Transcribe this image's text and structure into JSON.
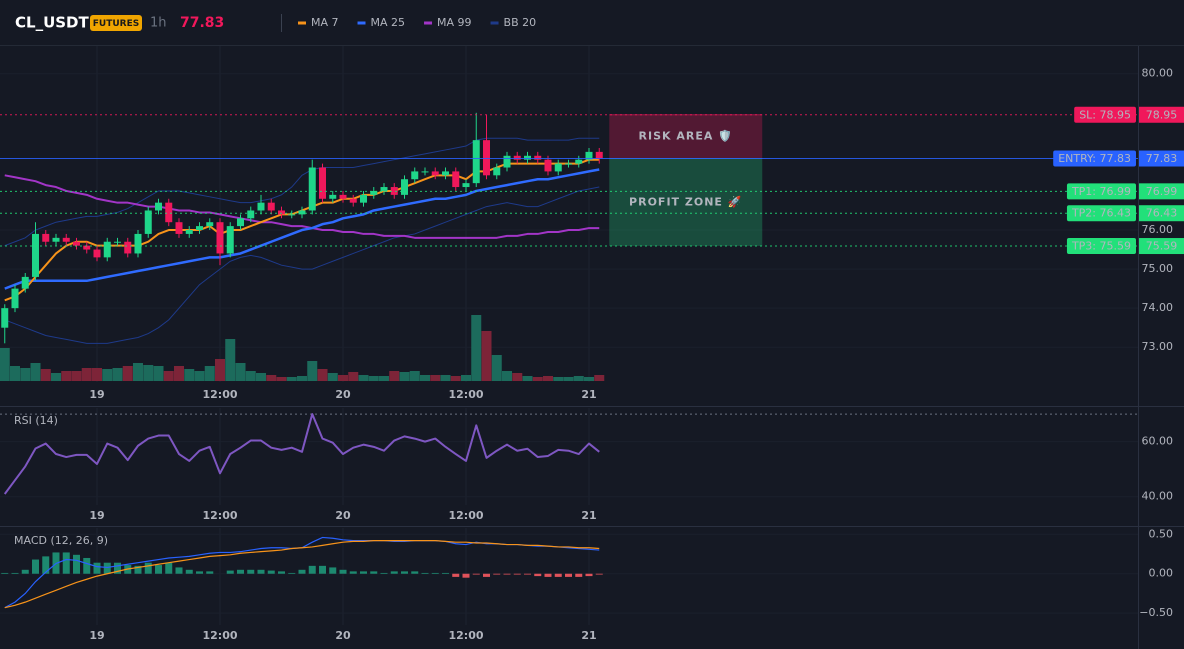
{
  "header": {
    "symbol": "CL_USDT",
    "market": "FUTURES",
    "interval": "1h",
    "price": 77.83
  },
  "chart_data": [
    {
      "type": "candlestick",
      "categories": [
        null,
        null,
        null,
        null,
        null,
        null,
        null,
        null,
        null,
        "19",
        null,
        null,
        null,
        null,
        null,
        null,
        null,
        null,
        null,
        null,
        null,
        "12:00",
        null,
        null,
        null,
        null,
        null,
        null,
        null,
        null,
        null,
        null,
        null,
        "20",
        null,
        null,
        null,
        null,
        null,
        null,
        null,
        null,
        null,
        null,
        null,
        "12:00",
        null,
        null,
        null,
        null,
        null,
        null,
        null,
        null,
        null,
        null,
        null,
        "21",
        null
      ],
      "open": [
        73.5,
        74.0,
        74.5,
        74.8,
        75.9,
        75.7,
        75.8,
        75.7,
        75.6,
        75.5,
        75.3,
        75.7,
        75.7,
        75.4,
        75.9,
        76.5,
        76.7,
        76.2,
        75.9,
        76.0,
        76.1,
        76.2,
        75.4,
        76.1,
        76.3,
        76.5,
        76.7,
        76.5,
        76.4,
        76.4,
        76.5,
        77.6,
        76.8,
        76.9,
        76.8,
        76.7,
        76.9,
        77.0,
        77.1,
        76.9,
        77.3,
        77.5,
        77.5,
        77.4,
        77.5,
        77.1,
        77.2,
        78.3,
        77.4,
        77.6,
        77.9,
        77.8,
        77.9,
        77.8,
        77.5,
        77.7,
        77.7,
        77.8,
        78.0
      ],
      "high": [
        74.1,
        74.6,
        74.9,
        76.2,
        76.0,
        75.9,
        75.9,
        75.8,
        75.7,
        75.6,
        75.8,
        75.8,
        75.8,
        76.0,
        76.6,
        76.8,
        76.8,
        76.3,
        76.1,
        76.2,
        76.3,
        76.3,
        76.2,
        76.4,
        76.6,
        76.9,
        76.8,
        76.6,
        76.5,
        76.6,
        77.8,
        77.7,
        77.0,
        77.0,
        76.9,
        77.0,
        77.1,
        77.2,
        77.2,
        77.4,
        77.6,
        77.6,
        77.6,
        77.6,
        77.6,
        77.3,
        79.0,
        78.95,
        77.7,
        78.0,
        78.0,
        78.0,
        78.0,
        77.9,
        77.8,
        77.8,
        77.9,
        78.1,
        78.1
      ],
      "low": [
        73.1,
        73.9,
        74.4,
        74.7,
        75.6,
        75.6,
        75.6,
        75.5,
        75.4,
        75.2,
        75.2,
        75.6,
        75.3,
        75.3,
        75.8,
        76.4,
        76.1,
        75.8,
        75.8,
        75.9,
        76.0,
        75.1,
        75.3,
        76.0,
        76.2,
        76.4,
        76.4,
        76.3,
        76.3,
        76.3,
        76.4,
        76.7,
        76.7,
        76.7,
        76.6,
        76.6,
        76.8,
        76.9,
        76.8,
        76.8,
        77.2,
        77.4,
        77.3,
        77.3,
        77.0,
        77.0,
        77.1,
        77.3,
        77.3,
        77.5,
        77.7,
        77.7,
        77.7,
        77.4,
        77.4,
        77.6,
        77.6,
        77.7,
        77.7
      ],
      "close": [
        74.0,
        74.5,
        74.8,
        75.9,
        75.7,
        75.8,
        75.7,
        75.6,
        75.5,
        75.3,
        75.7,
        75.7,
        75.4,
        75.9,
        76.5,
        76.7,
        76.2,
        75.9,
        76.0,
        76.1,
        76.2,
        75.4,
        76.1,
        76.3,
        76.5,
        76.7,
        76.5,
        76.4,
        76.4,
        76.5,
        77.6,
        76.8,
        76.9,
        76.8,
        76.7,
        76.9,
        77.0,
        77.1,
        76.9,
        77.3,
        77.5,
        77.5,
        77.4,
        77.5,
        77.1,
        77.2,
        78.3,
        77.4,
        77.6,
        77.9,
        77.8,
        77.9,
        77.8,
        77.5,
        77.7,
        77.7,
        77.8,
        78.0,
        77.83
      ],
      "volume": [
        33,
        15,
        13,
        18,
        12,
        8,
        10,
        10,
        13,
        13,
        12,
        13,
        15,
        18,
        16,
        15,
        10,
        15,
        12,
        10,
        15,
        22,
        42,
        18,
        10,
        8,
        6,
        4,
        4,
        5,
        20,
        12,
        8,
        6,
        9,
        6,
        5,
        5,
        10,
        9,
        10,
        6,
        6,
        6,
        5,
        6,
        66,
        50,
        26,
        10,
        8,
        5,
        4,
        5,
        4,
        4,
        5,
        4,
        6
      ],
      "up_color": "#1fd68a",
      "down_color": "#f0185b",
      "volume_up_color": "#1c6b5c",
      "volume_down_color": "#7d2438",
      "series": [
        {
          "name": "MA 7",
          "color": "#f7931a",
          "width": 2,
          "values": [
            74.2,
            74.3,
            74.5,
            74.8,
            75.1,
            75.4,
            75.6,
            75.7,
            75.7,
            75.6,
            75.6,
            75.6,
            75.6,
            75.6,
            75.7,
            75.9,
            76.0,
            76.0,
            76.0,
            76.0,
            76.1,
            75.9,
            76.0,
            76.0,
            76.1,
            76.2,
            76.3,
            76.4,
            76.4,
            76.5,
            76.6,
            76.7,
            76.7,
            76.8,
            76.8,
            76.9,
            76.9,
            77.0,
            77.0,
            77.1,
            77.2,
            77.3,
            77.4,
            77.4,
            77.4,
            77.3,
            77.5,
            77.5,
            77.6,
            77.7,
            77.7,
            77.7,
            77.7,
            77.7,
            77.7,
            77.7,
            77.7,
            77.8,
            77.8
          ]
        },
        {
          "name": "MA 25",
          "color": "#2f6bff",
          "width": 2.5,
          "values": [
            74.5,
            74.6,
            74.7,
            74.7,
            74.7,
            74.7,
            74.7,
            74.7,
            74.7,
            74.75,
            74.8,
            74.85,
            74.9,
            74.95,
            75.0,
            75.05,
            75.1,
            75.15,
            75.2,
            75.25,
            75.3,
            75.3,
            75.35,
            75.4,
            75.5,
            75.6,
            75.7,
            75.8,
            75.9,
            76.0,
            76.05,
            76.15,
            76.2,
            76.3,
            76.35,
            76.4,
            76.5,
            76.55,
            76.6,
            76.65,
            76.7,
            76.75,
            76.8,
            76.8,
            76.85,
            76.9,
            77.0,
            77.05,
            77.1,
            77.15,
            77.2,
            77.25,
            77.3,
            77.3,
            77.35,
            77.4,
            77.45,
            77.5,
            77.55
          ]
        },
        {
          "name": "MA 99",
          "color": "#a235c7",
          "width": 2,
          "values": [
            77.4,
            77.35,
            77.3,
            77.25,
            77.15,
            77.1,
            77.0,
            76.95,
            76.9,
            76.8,
            76.75,
            76.7,
            76.7,
            76.65,
            76.6,
            76.6,
            76.55,
            76.5,
            76.5,
            76.45,
            76.45,
            76.4,
            76.35,
            76.3,
            76.25,
            76.2,
            76.2,
            76.15,
            76.1,
            76.1,
            76.05,
            76.0,
            76.0,
            75.95,
            75.95,
            75.9,
            75.9,
            75.85,
            75.85,
            75.85,
            75.8,
            75.8,
            75.8,
            75.8,
            75.8,
            75.8,
            75.8,
            75.8,
            75.8,
            75.85,
            75.85,
            75.9,
            75.9,
            75.95,
            75.95,
            76.0,
            76.0,
            76.05,
            76.05
          ]
        },
        {
          "name": "BB 20",
          "color": "#1e3a8a",
          "width": 1,
          "upper": [
            75.6,
            75.7,
            75.8,
            76.0,
            76.1,
            76.2,
            76.25,
            76.3,
            76.35,
            76.35,
            76.4,
            76.45,
            76.55,
            76.7,
            76.85,
            77.0,
            77.0,
            77.0,
            76.95,
            76.9,
            76.85,
            76.8,
            76.75,
            76.7,
            76.7,
            76.75,
            76.8,
            76.9,
            77.1,
            77.4,
            77.55,
            77.6,
            77.6,
            77.6,
            77.6,
            77.65,
            77.7,
            77.75,
            77.8,
            77.85,
            77.9,
            77.95,
            78.0,
            78.05,
            78.1,
            78.15,
            78.3,
            78.35,
            78.35,
            78.35,
            78.35,
            78.3,
            78.3,
            78.3,
            78.3,
            78.3,
            78.35,
            78.35,
            78.35
          ],
          "lower": [
            73.7,
            73.6,
            73.5,
            73.4,
            73.3,
            73.25,
            73.2,
            73.15,
            73.1,
            73.1,
            73.1,
            73.15,
            73.2,
            73.25,
            73.35,
            73.5,
            73.7,
            74.0,
            74.3,
            74.6,
            74.8,
            75.0,
            75.2,
            75.3,
            75.35,
            75.3,
            75.2,
            75.1,
            75.05,
            75.0,
            75.0,
            75.1,
            75.2,
            75.3,
            75.4,
            75.5,
            75.6,
            75.7,
            75.8,
            75.85,
            75.9,
            76.0,
            76.1,
            76.2,
            76.3,
            76.4,
            76.5,
            76.6,
            76.65,
            76.7,
            76.65,
            76.6,
            76.6,
            76.7,
            76.8,
            76.9,
            77.0,
            77.05,
            77.1
          ]
        }
      ],
      "levels": [
        {
          "label": "SL: 78.95",
          "value": 78.95,
          "color": "#f0185b",
          "text_color": "#ffffff",
          "line": "dotted"
        },
        {
          "label": "ENTRY: 77.83",
          "value": 77.83,
          "color": "#2962ff",
          "text_color": "#ffffff",
          "line": "solid"
        },
        {
          "label": "TP1: 76.99",
          "value": 76.99,
          "color": "#22e07a",
          "text_color": "#0b1a10",
          "line": "dotted"
        },
        {
          "label": "TP2: 76.43",
          "value": 76.43,
          "color": "#22e07a",
          "text_color": "#0b1a10",
          "line": "dotted"
        },
        {
          "label": "TP3: 75.59",
          "value": 75.59,
          "color": "#22e07a",
          "text_color": "#0b1a10",
          "line": "dotted"
        }
      ],
      "zones": [
        {
          "label": "RISK AREA 🛡️",
          "from": 78.95,
          "to": 77.83,
          "color": "#f0185b"
        },
        {
          "label": "PROFIT ZONE 🚀",
          "from": 77.83,
          "to": 75.59,
          "color": "#25d07d"
        }
      ],
      "ylim": [
        72.11,
        80.71
      ],
      "yticks": [
        {
          "value": 73,
          "label": "73.00"
        },
        {
          "value": 74,
          "label": "74.00"
        },
        {
          "value": 75,
          "label": "75.00"
        },
        {
          "value": 76,
          "label": "76.00"
        },
        {
          "value": 80,
          "label": "80.00"
        }
      ]
    },
    {
      "type": "line",
      "title": "RSI (14)",
      "categories": [
        null,
        null,
        null,
        null,
        null,
        null,
        null,
        null,
        null,
        "19",
        null,
        null,
        null,
        null,
        null,
        null,
        null,
        null,
        null,
        null,
        null,
        "12:00",
        null,
        null,
        null,
        null,
        null,
        null,
        null,
        null,
        null,
        null,
        null,
        "20",
        null,
        null,
        null,
        null,
        null,
        null,
        null,
        null,
        null,
        null,
        null,
        "12:00",
        null,
        null,
        null,
        null,
        null,
        null,
        null,
        null,
        null,
        null,
        null,
        "21",
        null
      ],
      "color": "#7e57c2",
      "values": [
        41,
        46,
        51,
        57.5,
        59.3,
        55.5,
        54.4,
        55.2,
        55.2,
        51.9,
        59.3,
        57.8,
        53.3,
        58.5,
        61.1,
        62.2,
        62.2,
        55.5,
        53,
        56.7,
        58.1,
        48.5,
        55.5,
        57.8,
        60.4,
        60.4,
        57.8,
        57,
        57.8,
        56.3,
        70,
        61.1,
        59.6,
        55.5,
        57.8,
        58.9,
        58.1,
        56.7,
        60.4,
        61.9,
        61.1,
        60,
        61.1,
        58.1,
        55.5,
        53,
        65.9,
        54.1,
        56.7,
        58.9,
        56.7,
        57.4,
        54.4,
        54.8,
        57,
        56.7,
        55.5,
        59.3,
        56.3
      ],
      "bands": [
        70
      ],
      "ylim": [
        37,
        72.2
      ],
      "yticks": [
        {
          "value": 40,
          "label": "40.00"
        },
        {
          "value": 60,
          "label": "60.00"
        }
      ]
    },
    {
      "type": "macd",
      "title": "MACD (12, 26, 9)",
      "categories": [
        null,
        null,
        null,
        null,
        null,
        null,
        null,
        null,
        null,
        "19",
        null,
        null,
        null,
        null,
        null,
        null,
        null,
        null,
        null,
        null,
        null,
        "12:00",
        null,
        null,
        null,
        null,
        null,
        null,
        null,
        null,
        null,
        null,
        null,
        "20",
        null,
        null,
        null,
        null,
        null,
        null,
        null,
        null,
        null,
        null,
        null,
        "12:00",
        null,
        null,
        null,
        null,
        null,
        null,
        null,
        null,
        null,
        null,
        null,
        "21",
        null
      ],
      "series": [
        {
          "color": "#2962ff",
          "values": [
            -0.43,
            -0.36,
            -0.25,
            -0.1,
            0.02,
            0.13,
            0.18,
            0.17,
            0.13,
            0.09,
            0.08,
            0.1,
            0.12,
            0.14,
            0.16,
            0.18,
            0.2,
            0.21,
            0.22,
            0.24,
            0.26,
            0.27,
            0.27,
            0.28,
            0.3,
            0.32,
            0.33,
            0.33,
            0.32,
            0.33,
            0.4,
            0.46,
            0.45,
            0.43,
            0.42,
            0.42,
            0.42,
            0.42,
            0.41,
            0.41,
            0.42,
            0.42,
            0.42,
            0.41,
            0.38,
            0.37,
            0.4,
            0.38,
            0.38,
            0.37,
            0.37,
            0.36,
            0.35,
            0.35,
            0.34,
            0.33,
            0.32,
            0.31,
            0.3
          ]
        },
        {
          "color": "#f7931a",
          "values": [
            -0.43,
            -0.4,
            -0.36,
            -0.31,
            -0.26,
            -0.21,
            -0.16,
            -0.11,
            -0.07,
            -0.03,
            0.0,
            0.03,
            0.06,
            0.08,
            0.1,
            0.12,
            0.14,
            0.16,
            0.18,
            0.2,
            0.22,
            0.23,
            0.24,
            0.26,
            0.27,
            0.28,
            0.29,
            0.3,
            0.32,
            0.33,
            0.34,
            0.36,
            0.38,
            0.4,
            0.41,
            0.41,
            0.42,
            0.42,
            0.42,
            0.42,
            0.42,
            0.42,
            0.42,
            0.41,
            0.4,
            0.4,
            0.39,
            0.39,
            0.38,
            0.37,
            0.37,
            0.36,
            0.36,
            0.35,
            0.34,
            0.34,
            0.33,
            0.33,
            0.32
          ]
        }
      ],
      "histogram": {
        "up_color": "#1d8a70",
        "down_color": "#e0525a",
        "values": [
          0.01,
          0.01,
          0.05,
          0.18,
          0.22,
          0.27,
          0.27,
          0.24,
          0.2,
          0.14,
          0.14,
          0.14,
          0.11,
          0.1,
          0.14,
          0.11,
          0.14,
          0.08,
          0.05,
          0.03,
          0.03,
          0.0,
          0.04,
          0.05,
          0.05,
          0.05,
          0.04,
          0.03,
          0.01,
          0.05,
          0.1,
          0.1,
          0.08,
          0.05,
          0.03,
          0.03,
          0.03,
          0.01,
          0.03,
          0.03,
          0.03,
          0.01,
          0.01,
          0.01,
          -0.04,
          -0.05,
          -0.01,
          -0.04,
          -0.01,
          -0.01,
          -0.01,
          -0.01,
          -0.03,
          -0.04,
          -0.04,
          -0.04,
          -0.04,
          -0.03,
          -0.01
        ]
      },
      "ylim": [
        -0.65,
        0.58
      ],
      "yticks": [
        {
          "value": 0.5,
          "label": "0.50"
        },
        {
          "value": 0,
          "label": "0.00"
        },
        {
          "value": -0.5,
          "label": "−0.50"
        }
      ]
    }
  ]
}
